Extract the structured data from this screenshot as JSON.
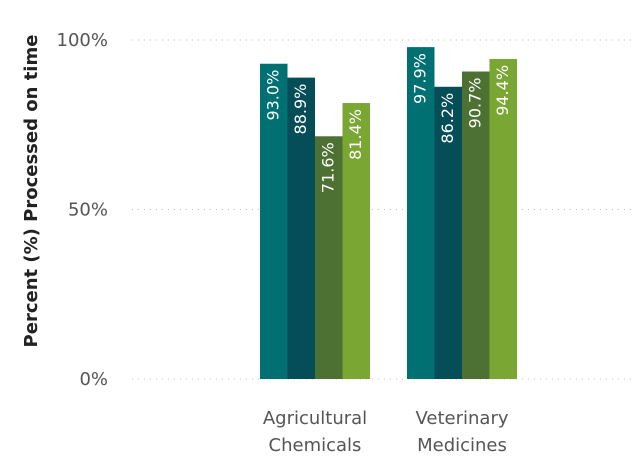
{
  "chart_data": {
    "type": "bar",
    "categories": [
      "Agricultural Chemicals",
      "Veterinary Medicines"
    ],
    "category_label_lines": [
      [
        "Agricultural",
        "Chemicals"
      ],
      [
        "Veterinary",
        "Medicines"
      ]
    ],
    "series": [
      {
        "values": [
          93.0,
          97.9
        ],
        "color": "#007073"
      },
      {
        "values": [
          88.9,
          86.2
        ],
        "color": "#054d57"
      },
      {
        "values": [
          71.6,
          90.7
        ],
        "color": "#4c7133"
      },
      {
        "values": [
          81.4,
          94.4
        ],
        "color": "#7aa634"
      }
    ],
    "data_labels": [
      [
        "93.0%",
        "97.9%"
      ],
      [
        "88.9%",
        "86.2%"
      ],
      [
        "71.6%",
        "90.7%"
      ],
      [
        "81.4%",
        "94.4%"
      ]
    ],
    "yticks": [
      0,
      50,
      100
    ],
    "ytick_labels": [
      "0%",
      "50%",
      "100%"
    ],
    "ylabel": "Percent (%) Processed on time",
    "xlabel": "",
    "title": "",
    "ylim": [
      0,
      100
    ],
    "grid": true
  }
}
